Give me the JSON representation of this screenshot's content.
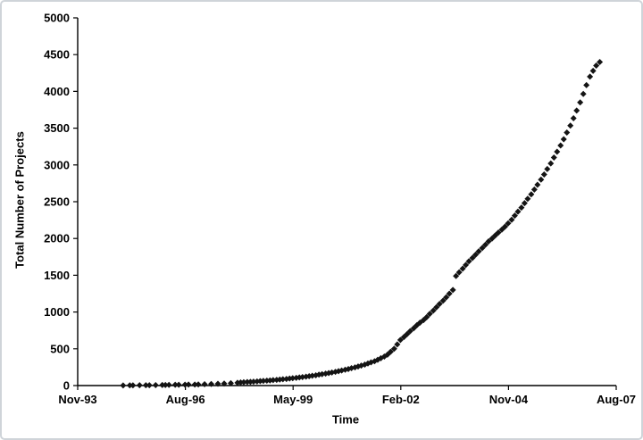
{
  "frame": {
    "background": "#ffffff",
    "border_color": "#cfd4d9",
    "axis_color": "#000000",
    "text_color": "#000000"
  },
  "chart_data": {
    "type": "scatter",
    "title": "",
    "xlabel": "Time",
    "ylabel": "Total Number of Projects",
    "legend": "none",
    "grid": false,
    "marker": {
      "shape": "diamond",
      "color": "#141414",
      "size": 7
    },
    "xlim": [
      1993.88,
      2007.63
    ],
    "ylim": [
      0,
      5000
    ],
    "y_ticks": [
      0,
      500,
      1000,
      1500,
      2000,
      2500,
      3000,
      3500,
      4000,
      4500,
      5000
    ],
    "x_ticks": [
      {
        "label": "Nov-93",
        "x": 1993.88
      },
      {
        "label": "Aug-96",
        "x": 1996.63
      },
      {
        "label": "May-99",
        "x": 1999.38
      },
      {
        "label": "Feb-02",
        "x": 2002.13
      },
      {
        "label": "Nov-04",
        "x": 2004.88
      },
      {
        "label": "Aug-07",
        "x": 2007.63
      }
    ],
    "points": [
      [
        1995.04,
        2
      ],
      [
        1995.21,
        3
      ],
      [
        1995.29,
        3
      ],
      [
        1995.46,
        4
      ],
      [
        1995.62,
        5
      ],
      [
        1995.71,
        5
      ],
      [
        1995.87,
        6
      ],
      [
        1996.04,
        8
      ],
      [
        1996.12,
        8
      ],
      [
        1996.21,
        9
      ],
      [
        1996.37,
        10
      ],
      [
        1996.46,
        11
      ],
      [
        1996.62,
        12
      ],
      [
        1996.71,
        13
      ],
      [
        1996.87,
        14
      ],
      [
        1996.96,
        15
      ],
      [
        1997.12,
        18
      ],
      [
        1997.29,
        21
      ],
      [
        1997.46,
        24
      ],
      [
        1997.62,
        28
      ],
      [
        1997.79,
        32
      ],
      [
        1997.96,
        38
      ],
      [
        1998.04,
        42
      ],
      [
        1998.12,
        45
      ],
      [
        1998.21,
        48
      ],
      [
        1998.29,
        50
      ],
      [
        1998.37,
        53
      ],
      [
        1998.46,
        56
      ],
      [
        1998.54,
        60
      ],
      [
        1998.62,
        63
      ],
      [
        1998.71,
        66
      ],
      [
        1998.79,
        70
      ],
      [
        1998.87,
        74
      ],
      [
        1998.96,
        78
      ],
      [
        1999.04,
        82
      ],
      [
        1999.12,
        86
      ],
      [
        1999.21,
        90
      ],
      [
        1999.29,
        95
      ],
      [
        1999.37,
        100
      ],
      [
        1999.46,
        105
      ],
      [
        1999.54,
        110
      ],
      [
        1999.62,
        116
      ],
      [
        1999.71,
        122
      ],
      [
        1999.79,
        128
      ],
      [
        1999.87,
        134
      ],
      [
        1999.96,
        140
      ],
      [
        2000.04,
        148
      ],
      [
        2000.12,
        155
      ],
      [
        2000.21,
        163
      ],
      [
        2000.29,
        170
      ],
      [
        2000.37,
        178
      ],
      [
        2000.46,
        186
      ],
      [
        2000.54,
        195
      ],
      [
        2000.62,
        205
      ],
      [
        2000.71,
        215
      ],
      [
        2000.79,
        225
      ],
      [
        2000.87,
        236
      ],
      [
        2000.96,
        248
      ],
      [
        2001.04,
        260
      ],
      [
        2001.12,
        272
      ],
      [
        2001.21,
        285
      ],
      [
        2001.29,
        300
      ],
      [
        2001.37,
        315
      ],
      [
        2001.46,
        330
      ],
      [
        2001.54,
        350
      ],
      [
        2001.62,
        372
      ],
      [
        2001.71,
        395
      ],
      [
        2001.79,
        420
      ],
      [
        2001.87,
        460
      ],
      [
        2001.96,
        500
      ],
      [
        2002.04,
        560
      ],
      [
        2002.12,
        620
      ],
      [
        2002.21,
        660
      ],
      [
        2002.29,
        700
      ],
      [
        2002.37,
        740
      ],
      [
        2002.46,
        780
      ],
      [
        2002.54,
        820
      ],
      [
        2002.62,
        855
      ],
      [
        2002.71,
        890
      ],
      [
        2002.79,
        930
      ],
      [
        2002.87,
        975
      ],
      [
        2002.96,
        1020
      ],
      [
        2003.04,
        1065
      ],
      [
        2003.12,
        1110
      ],
      [
        2003.21,
        1155
      ],
      [
        2003.29,
        1200
      ],
      [
        2003.37,
        1250
      ],
      [
        2003.46,
        1300
      ],
      [
        2003.54,
        1490
      ],
      [
        2003.62,
        1540
      ],
      [
        2003.71,
        1590
      ],
      [
        2003.79,
        1640
      ],
      [
        2003.87,
        1690
      ],
      [
        2003.96,
        1735
      ],
      [
        2004.04,
        1780
      ],
      [
        2004.12,
        1825
      ],
      [
        2004.21,
        1870
      ],
      [
        2004.29,
        1915
      ],
      [
        2004.37,
        1960
      ],
      [
        2004.46,
        2000
      ],
      [
        2004.54,
        2040
      ],
      [
        2004.62,
        2080
      ],
      [
        2004.71,
        2120
      ],
      [
        2004.79,
        2160
      ],
      [
        2004.87,
        2205
      ],
      [
        2004.96,
        2255
      ],
      [
        2005.04,
        2310
      ],
      [
        2005.12,
        2365
      ],
      [
        2005.21,
        2420
      ],
      [
        2005.29,
        2480
      ],
      [
        2005.37,
        2540
      ],
      [
        2005.46,
        2600
      ],
      [
        2005.54,
        2665
      ],
      [
        2005.62,
        2730
      ],
      [
        2005.71,
        2800
      ],
      [
        2005.79,
        2870
      ],
      [
        2005.87,
        2945
      ],
      [
        2005.96,
        3020
      ],
      [
        2006.04,
        3100
      ],
      [
        2006.12,
        3180
      ],
      [
        2006.21,
        3265
      ],
      [
        2006.29,
        3350
      ],
      [
        2006.37,
        3440
      ],
      [
        2006.46,
        3535
      ],
      [
        2006.54,
        3635
      ],
      [
        2006.62,
        3740
      ],
      [
        2006.71,
        3850
      ],
      [
        2006.79,
        3965
      ],
      [
        2006.87,
        4085
      ],
      [
        2006.96,
        4200
      ],
      [
        2007.04,
        4280
      ],
      [
        2007.12,
        4350
      ],
      [
        2007.21,
        4400
      ]
    ]
  }
}
